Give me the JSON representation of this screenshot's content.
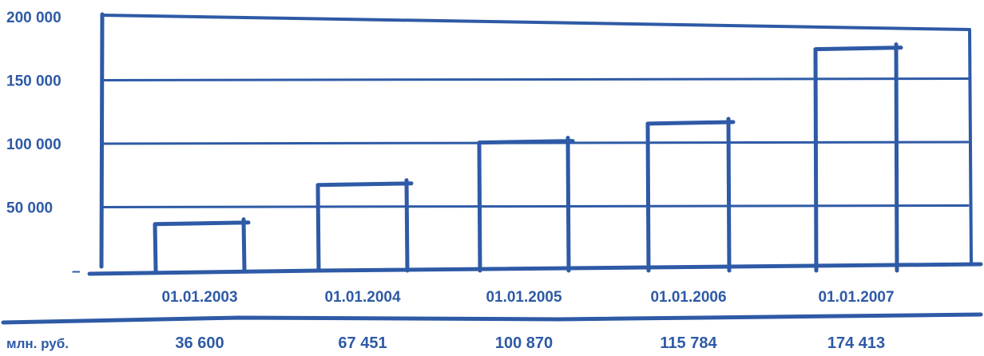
{
  "chart_data": {
    "type": "bar",
    "categories": [
      "01.01.2003",
      "01.01.2004",
      "01.01.2005",
      "01.01.2006",
      "01.01.2007"
    ],
    "values": [
      36600,
      67451,
      100870,
      115784,
      174413
    ],
    "value_labels": [
      "36 600",
      "67 451",
      "100 870",
      "115 784",
      "174 413"
    ],
    "y_ticks": [
      {
        "value": 200000,
        "label": "200 000"
      },
      {
        "value": 150000,
        "label": "150 000"
      },
      {
        "value": 100000,
        "label": "100 000"
      },
      {
        "value": 50000,
        "label": "50 000"
      },
      {
        "value": 0,
        "label": "–"
      }
    ],
    "ylim": [
      0,
      200000
    ],
    "grid": true,
    "unit_label": "млн. руб.",
    "colors": {
      "ink": "#2e5aa6",
      "text": "#2e5aa6",
      "background": "#ffffff"
    }
  }
}
